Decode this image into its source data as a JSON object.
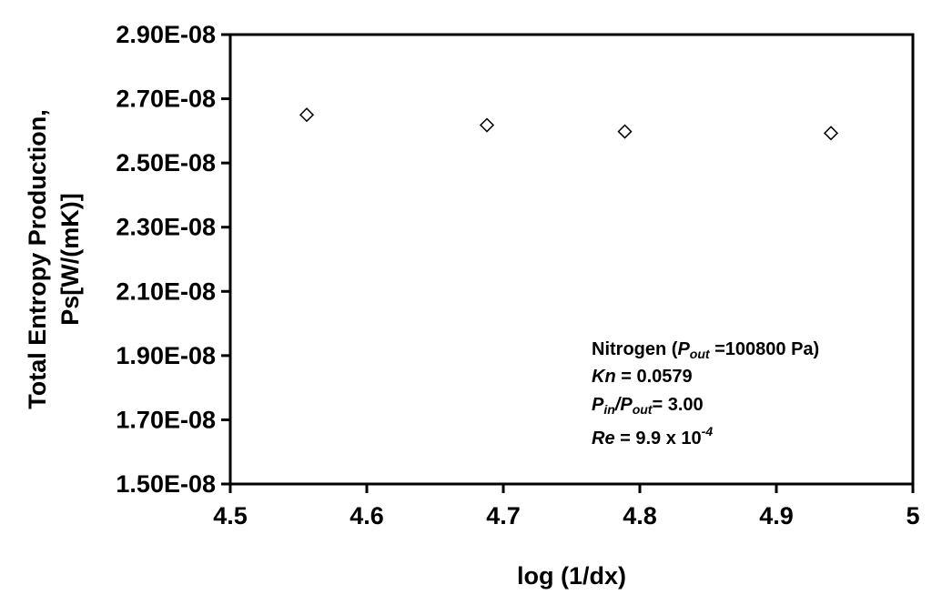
{
  "chart_data": {
    "type": "scatter",
    "xlabel": "log (1/dx)",
    "ylabel_line1": "Total Entropy Production,",
    "ylabel_line2": "Ps[W/(mK)]",
    "xlim": [
      4.5,
      5.0
    ],
    "ylim": [
      1.5e-08,
      2.9e-08
    ],
    "x_ticks": [
      4.5,
      4.6,
      4.7,
      4.8,
      4.9,
      5.0
    ],
    "x_tick_labels": [
      "4.5",
      "4.6",
      "4.7",
      "4.8",
      "4.9",
      "5"
    ],
    "y_ticks": [
      1.5e-08,
      1.7e-08,
      1.9e-08,
      2.1e-08,
      2.3e-08,
      2.5e-08,
      2.7e-08,
      2.9e-08
    ],
    "y_tick_labels": [
      "1.50E-08",
      "1.70E-08",
      "1.90E-08",
      "2.10E-08",
      "2.30E-08",
      "2.50E-08",
      "2.70E-08",
      "2.90E-08"
    ],
    "grid": false,
    "legend": "none",
    "marker": "diamond-open",
    "series": [
      {
        "x": [
          4.556,
          4.688,
          4.789,
          4.94
        ],
        "y": [
          2.65e-08,
          2.618e-08,
          2.598e-08,
          2.593e-08
        ]
      }
    ],
    "annotation": {
      "line1": {
        "prefix": "Nitrogen (",
        "p": "P",
        "sub": "out",
        "suffix": " =100800 Pa)"
      },
      "line2": {
        "kn": "Kn",
        "rest": " = 0.0579"
      },
      "line3": {
        "p1": "P",
        "sub1": "in",
        "slash": "/",
        "p2": "P",
        "sub2": "out",
        "rest": "= 3.00"
      },
      "line4": {
        "re": "Re",
        "rest": " = 9.9 x 10",
        "exp": "-4"
      }
    }
  }
}
